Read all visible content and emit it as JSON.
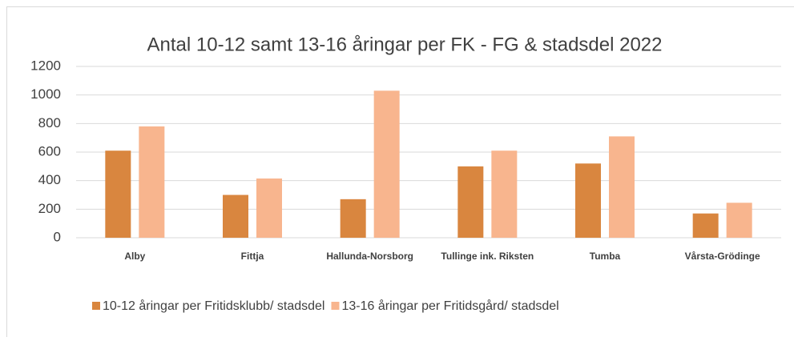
{
  "chart_data": {
    "type": "bar",
    "title": "Antal 10-12 samt 13-16 åringar per FK - FG & stadsdel 2022",
    "categories": [
      "Alby",
      "Fittja",
      "Hallunda-Norsborg",
      "Tullinge ink. Riksten",
      "Tumba",
      "Vårsta-Grödinge"
    ],
    "series": [
      {
        "name": "10-12 åringar per Fritidsklubb/ stadsdel",
        "color": "#d9863f",
        "values": [
          610,
          300,
          270,
          500,
          520,
          170
        ]
      },
      {
        "name": "13-16 åringar per Fritidsgård/ stadsdel",
        "color": "#f8b58e",
        "values": [
          780,
          415,
          1030,
          610,
          710,
          245
        ]
      }
    ],
    "ylim": [
      0,
      1200
    ],
    "yticks": [
      0,
      200,
      400,
      600,
      800,
      1000,
      1200
    ],
    "grid": true,
    "legend": "bottom"
  }
}
